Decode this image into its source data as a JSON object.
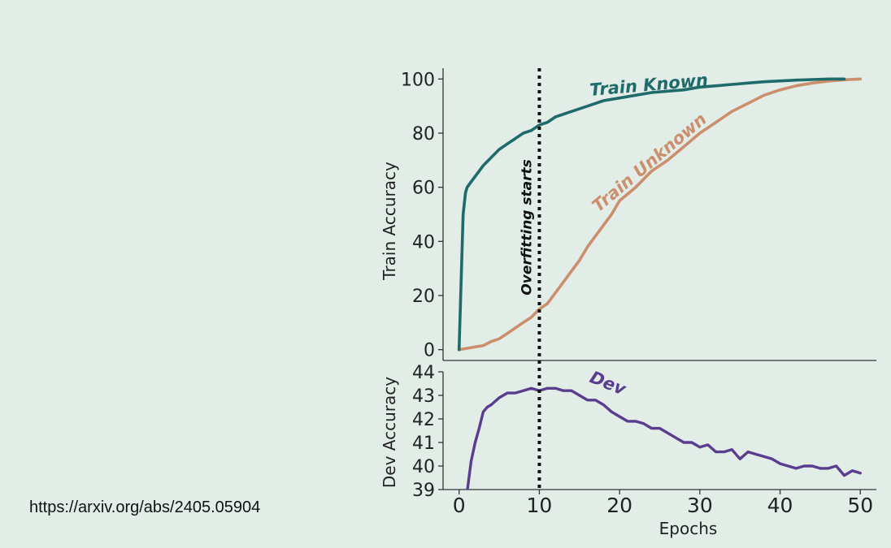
{
  "source_link": "https://arxiv.org/abs/2405.05904",
  "chart_data": [
    {
      "type": "line",
      "ylabel": "Train Accuracy",
      "xlabel": "",
      "xlim": [
        -2,
        52
      ],
      "ylim": [
        -4,
        104
      ],
      "yticks": [
        0,
        20,
        40,
        60,
        80,
        100
      ],
      "yticklabels": [
        "0",
        "20",
        "40",
        "60",
        "80",
        "100"
      ],
      "grid": false,
      "vertical_marker": {
        "x": 10,
        "label": "Overfitting starts",
        "style": "dotted",
        "color": "#111111"
      },
      "series": [
        {
          "name": "Train Known",
          "color": "#1f6a6a",
          "x": [
            0,
            0.3,
            0.5,
            0.8,
            1,
            1.5,
            2,
            3,
            4,
            5,
            6,
            7,
            8,
            9,
            10,
            11,
            12,
            14,
            16,
            18,
            20,
            22,
            24,
            26,
            28,
            30,
            32,
            34,
            36,
            38,
            40,
            42,
            44,
            46,
            48
          ],
          "y": [
            0,
            30,
            50,
            58,
            60,
            62,
            64,
            68,
            71,
            74,
            76,
            78,
            80,
            81,
            83,
            84,
            86,
            88,
            90,
            92,
            93,
            94,
            95,
            95.5,
            96,
            97,
            97.5,
            98,
            98.5,
            99,
            99.3,
            99.6,
            99.8,
            100,
            100
          ]
        },
        {
          "name": "Train Unknown",
          "color": "#cc8f6e",
          "x": [
            0,
            1,
            2,
            3,
            4,
            5,
            6,
            7,
            8,
            9,
            10,
            11,
            12,
            13,
            14,
            15,
            16,
            17,
            18,
            19,
            20,
            22,
            24,
            26,
            28,
            30,
            32,
            34,
            36,
            38,
            40,
            42,
            44,
            46,
            48,
            50
          ],
          "y": [
            0,
            0.5,
            1,
            1.5,
            3,
            4,
            6,
            8,
            10,
            12,
            15,
            17,
            21,
            25,
            29,
            33,
            38,
            42,
            46,
            50,
            55,
            60,
            66,
            70,
            75,
            80,
            84,
            88,
            91,
            94,
            96,
            97.5,
            98.5,
            99.2,
            99.7,
            100
          ]
        }
      ]
    },
    {
      "type": "line",
      "ylabel": "Dev Accuracy",
      "xlabel": "Epochs",
      "xlim": [
        -2,
        52
      ],
      "ylim": [
        39,
        44
      ],
      "xticks": [
        0,
        10,
        20,
        30,
        40,
        50
      ],
      "xticklabels": [
        "0",
        "10",
        "20",
        "30",
        "40",
        "50"
      ],
      "yticks": [
        39,
        40,
        41,
        42,
        43,
        44
      ],
      "yticklabels": [
        "39",
        "40",
        "41",
        "42",
        "43",
        "44"
      ],
      "grid": false,
      "vertical_marker": {
        "x": 10,
        "style": "dotted",
        "color": "#111111"
      },
      "series": [
        {
          "name": "Dev",
          "color": "#5a3d8f",
          "x": [
            1,
            1.5,
            2,
            2.5,
            3,
            3.5,
            4,
            5,
            6,
            7,
            8,
            9,
            10,
            11,
            12,
            13,
            14,
            15,
            16,
            17,
            18,
            19,
            20,
            21,
            22,
            23,
            24,
            25,
            26,
            27,
            28,
            29,
            30,
            31,
            32,
            33,
            34,
            35,
            36,
            37,
            38,
            39,
            40,
            41,
            42,
            43,
            44,
            45,
            46,
            47,
            48,
            49,
            50
          ],
          "y": [
            38.9,
            40.2,
            41,
            41.6,
            42.3,
            42.5,
            42.6,
            42.9,
            43.1,
            43.1,
            43.2,
            43.3,
            43.2,
            43.3,
            43.3,
            43.2,
            43.2,
            43,
            42.8,
            42.8,
            42.6,
            42.3,
            42.1,
            41.9,
            41.9,
            41.8,
            41.6,
            41.6,
            41.4,
            41.2,
            41,
            41,
            40.8,
            40.9,
            40.6,
            40.6,
            40.7,
            40.3,
            40.6,
            40.5,
            40.4,
            40.3,
            40.1,
            40,
            39.9,
            40,
            40,
            39.9,
            39.9,
            40,
            39.6,
            39.8,
            39.7
          ]
        }
      ]
    }
  ]
}
